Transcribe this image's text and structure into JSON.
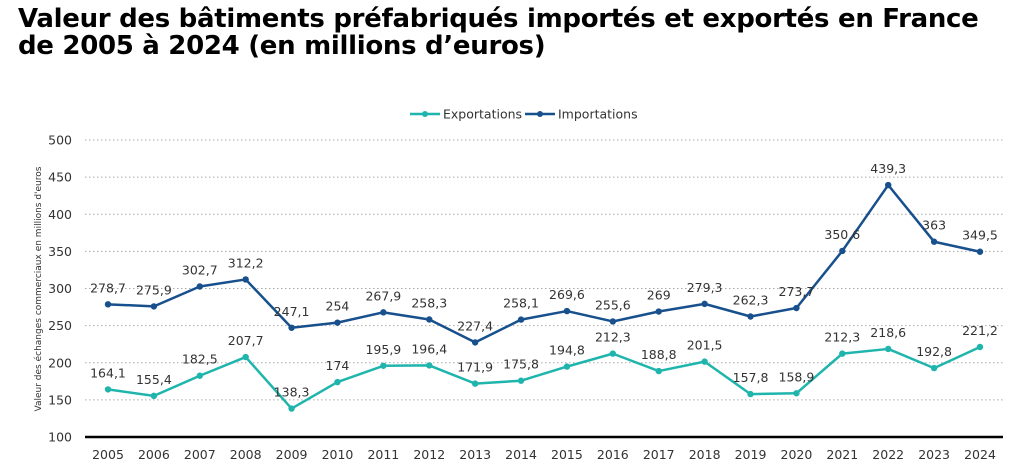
{
  "chart_data": {
    "type": "line",
    "title": "Valeur des bâtiments préfabriqués importés et exportés en France de 2005 à 2024 (en millions d’euros)",
    "xlabel": "",
    "ylabel": "Valeur des échanges commerciaux en millions d'euros",
    "ylim": [
      100,
      500
    ],
    "yticks": [
      100,
      150,
      200,
      250,
      300,
      350,
      400,
      450,
      500
    ],
    "grid": true,
    "legend": "top-center",
    "categories": [
      "2005",
      "2006",
      "2007",
      "2008",
      "2009",
      "2010",
      "2011",
      "2012",
      "2013",
      "2014",
      "2015",
      "2016",
      "2017",
      "2018",
      "2019",
      "2020",
      "2021",
      "2022",
      "2023",
      "2024"
    ],
    "series": [
      {
        "name": "Exportations",
        "color": "#1fb5ad",
        "values": [
          164.1,
          155.4,
          182.5,
          207.7,
          138.3,
          174,
          195.9,
          196.4,
          171.9,
          175.8,
          194.8,
          212.3,
          188.8,
          201.5,
          157.8,
          158.9,
          212.3,
          218.6,
          192.8,
          221.2
        ]
      },
      {
        "name": "Importations",
        "color": "#17508c",
        "values": [
          278.7,
          275.9,
          302.7,
          312.2,
          247.1,
          254,
          267.9,
          258.3,
          227.4,
          258.1,
          269.6,
          255.6,
          269,
          279.3,
          262.3,
          273.7,
          350.6,
          439.3,
          363,
          349.5
        ]
      }
    ]
  }
}
